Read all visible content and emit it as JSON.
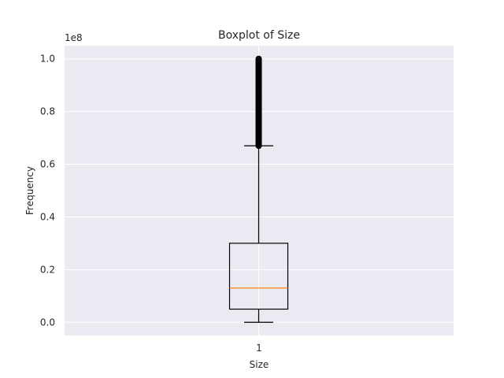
{
  "chart_data": {
    "type": "boxplot",
    "title": "Boxplot of Size",
    "xlabel": "Size",
    "ylabel": "Frequency",
    "offset_label": "1e8",
    "categories": [
      "1"
    ],
    "ylim": [
      -0.05,
      1.05
    ],
    "yticks": [
      0.0,
      0.2,
      0.4,
      0.6,
      0.8,
      1.0
    ],
    "ytick_labels": [
      "0.0",
      "0.2",
      "0.4",
      "0.6",
      "0.8",
      "1.0"
    ],
    "grid": true,
    "box": {
      "whisker_low": 0.0,
      "q1": 0.05,
      "median": 0.13,
      "q3": 0.3,
      "whisker_high": 0.67
    },
    "outliers_range": [
      0.67,
      1.0
    ],
    "outlier_count": 120,
    "colors": {
      "background": "#eaeaf2",
      "grid": "#ffffff",
      "box": "#000000",
      "median": "#ff7f0e"
    }
  }
}
